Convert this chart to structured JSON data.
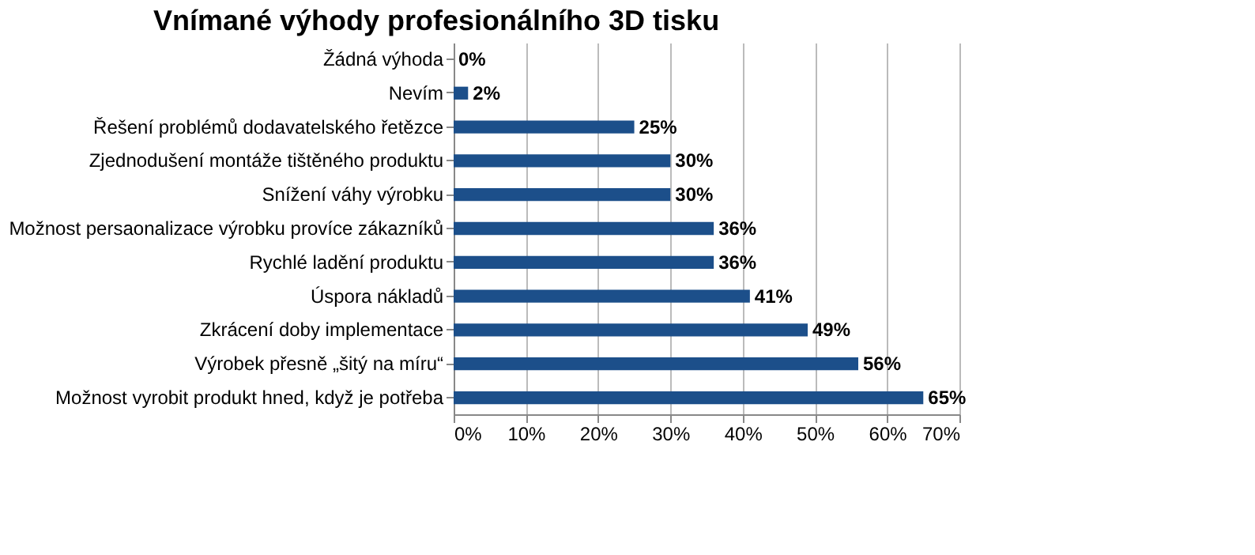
{
  "chart_data": {
    "type": "bar",
    "orientation": "horizontal",
    "title": "Vnímané výhody profesionálního 3D tisku",
    "categories": [
      "Žádná výhoda",
      "Nevím",
      "Řešení problémů dodavatelského řetězce",
      "Zjednodušení montáže tištěného produktu",
      "Snížení váhy výrobku",
      "Možnost persaonalizace výrobku províce zákazníků",
      "Rychlé ladění produktu",
      "Úspora nákladů",
      "Zkrácení doby implementace",
      "Výrobek přesně „šitý na míru“",
      "Možnost vyrobit produkt hned, když je potřeba"
    ],
    "values": [
      0,
      2,
      25,
      30,
      30,
      36,
      36,
      41,
      49,
      56,
      65
    ],
    "value_labels": [
      "0%",
      "2%",
      "25%",
      "30%",
      "30%",
      "36%",
      "36%",
      "41%",
      "49%",
      "56%",
      "65%"
    ],
    "color": "#1c4f8a",
    "xlim": [
      0,
      70
    ],
    "xticks": [
      {
        "value": 0,
        "label": "0%"
      },
      {
        "value": 10,
        "label": "10%"
      },
      {
        "value": 20,
        "label": "20%"
      },
      {
        "value": 30,
        "label": "30%"
      },
      {
        "value": 40,
        "label": "40%"
      },
      {
        "value": 50,
        "label": "50%"
      },
      {
        "value": 60,
        "label": "60%"
      },
      {
        "value": 70,
        "label": "70%"
      }
    ],
    "grid": "x"
  }
}
